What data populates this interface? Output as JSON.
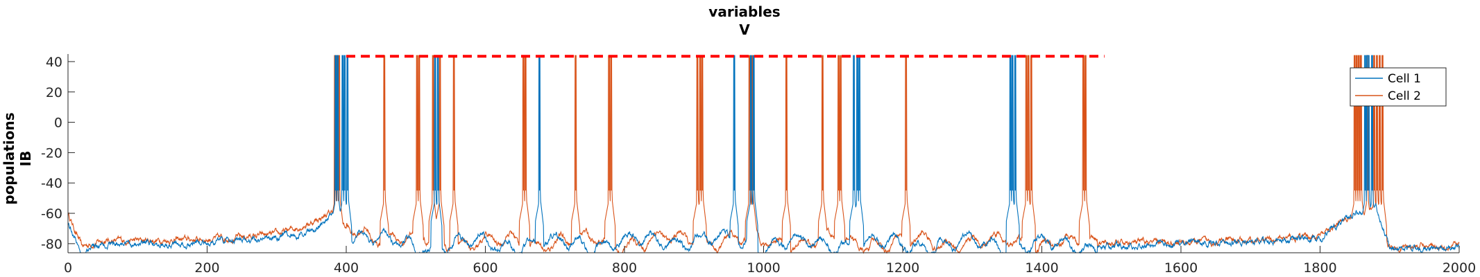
{
  "chart_data": {
    "type": "line",
    "title": "variables",
    "subtitle": "V",
    "ylabel": "populations",
    "ylabel2": "IB",
    "xlim": [
      0,
      2000
    ],
    "ylim": [
      -86,
      45
    ],
    "xticks": [
      0,
      200,
      400,
      600,
      800,
      1000,
      1200,
      1400,
      1600,
      1800,
      2000
    ],
    "yticks": [
      -80,
      -60,
      -40,
      -20,
      0,
      20,
      40
    ],
    "grid": false,
    "legend_position": "top-right",
    "colors": {
      "cell1": "#0072bd",
      "cell2": "#d95319",
      "threshold": "#ff0000"
    },
    "threshold_line": {
      "y": 43.5,
      "x_start": 400,
      "x_end": 1490,
      "style": "dashed"
    },
    "series": [
      {
        "name": "Cell 1",
        "color": "#0072bd",
        "baseline": [
          [
            0,
            -66
          ],
          [
            20,
            -86
          ],
          [
            50,
            -80
          ],
          [
            100,
            -80
          ],
          [
            200,
            -79
          ],
          [
            300,
            -76
          ],
          [
            350,
            -72
          ],
          [
            385,
            -60
          ],
          [
            400,
            -73
          ],
          [
            500,
            -82
          ],
          [
            600,
            -80
          ],
          [
            700,
            -80
          ],
          [
            800,
            -80
          ],
          [
            900,
            -77
          ],
          [
            1000,
            -80
          ],
          [
            1100,
            -80
          ],
          [
            1200,
            -80
          ],
          [
            1300,
            -80
          ],
          [
            1400,
            -81
          ],
          [
            1480,
            -82
          ],
          [
            1600,
            -80
          ],
          [
            1700,
            -79
          ],
          [
            1800,
            -76
          ],
          [
            1840,
            -63
          ],
          [
            1880,
            -55
          ],
          [
            1900,
            -83
          ],
          [
            2000,
            -83
          ]
        ],
        "spikes": [
          385,
          388,
          395,
          398,
          402,
          528,
          532,
          678,
          958,
          982,
          986,
          1130,
          1135,
          1138,
          1355,
          1358,
          1362,
          1865,
          1868,
          1870,
          1875
        ]
      },
      {
        "name": "Cell 2",
        "color": "#d95319",
        "baseline": [
          [
            0,
            -60
          ],
          [
            20,
            -82
          ],
          [
            50,
            -78
          ],
          [
            100,
            -78
          ],
          [
            200,
            -77
          ],
          [
            300,
            -74
          ],
          [
            350,
            -66
          ],
          [
            385,
            -58
          ],
          [
            400,
            -70
          ],
          [
            500,
            -78
          ],
          [
            600,
            -80
          ],
          [
            700,
            -78
          ],
          [
            800,
            -79
          ],
          [
            900,
            -77
          ],
          [
            1000,
            -78
          ],
          [
            1100,
            -79
          ],
          [
            1200,
            -79
          ],
          [
            1300,
            -79
          ],
          [
            1400,
            -80
          ],
          [
            1480,
            -80
          ],
          [
            1600,
            -79
          ],
          [
            1700,
            -78
          ],
          [
            1800,
            -75
          ],
          [
            1840,
            -64
          ],
          [
            1880,
            -57
          ],
          [
            1900,
            -82
          ],
          [
            2000,
            -81
          ]
        ],
        "spikes": [
          384,
          387,
          390,
          455,
          502,
          505,
          525,
          535,
          555,
          655,
          658,
          730,
          778,
          781,
          905,
          909,
          912,
          980,
          984,
          1033,
          1085,
          1108,
          1111,
          1205,
          1378,
          1381,
          1385,
          1460,
          1463,
          1850,
          1853,
          1856,
          1859,
          1868,
          1878,
          1882,
          1886,
          1890
        ]
      }
    ]
  }
}
